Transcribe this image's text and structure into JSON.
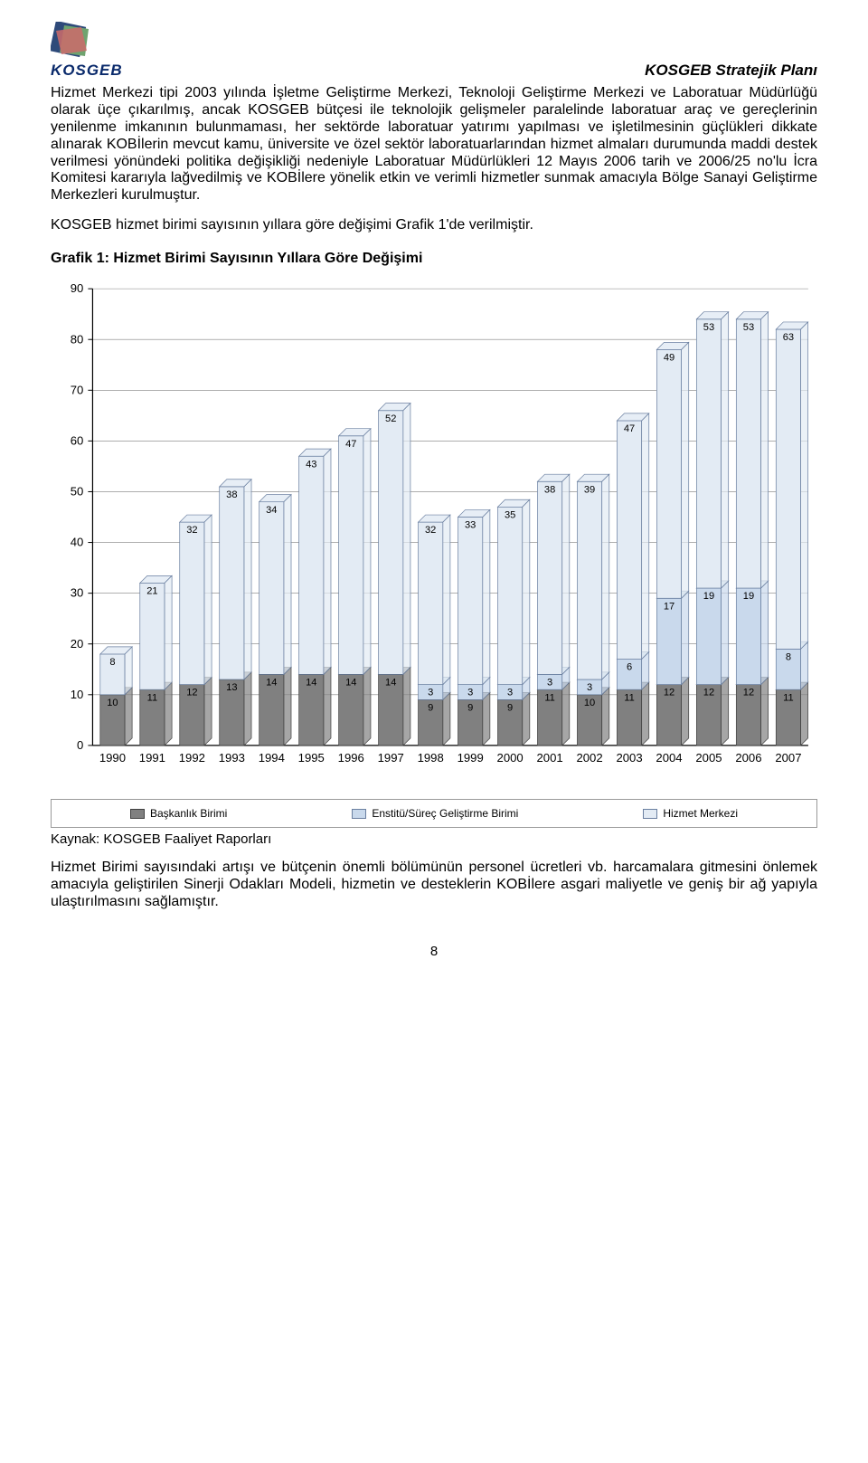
{
  "header": {
    "logo_text": "KOSGEB",
    "title": "KOSGEB Stratejik Planı"
  },
  "paragraphs": {
    "p1": "Hizmet Merkezi tipi 2003 yılında İşletme Geliştirme Merkezi, Teknoloji Geliştirme Merkezi ve Laboratuar Müdürlüğü olarak üçe çıkarılmış, ancak KOSGEB bütçesi ile teknolojik gelişmeler paralelinde laboratuar araç ve gereçlerinin yenilenme imkanının bulunmaması, her sektörde laboratuar yatırımı yapılması ve işletilmesinin güçlükleri dikkate alınarak KOBİlerin mevcut kamu, üniversite ve özel sektör laboratuarlarından hizmet almaları durumunda maddi destek verilmesi yönündeki politika değişikliği nedeniyle Laboratuar Müdürlükleri 12 Mayıs 2006 tarih ve 2006/25 no'lu İcra Komitesi kararıyla lağvedilmiş ve KOBİlere yönelik etkin ve verimli hizmetler sunmak amacıyla Bölge Sanayi Geliştirme Merkezleri kurulmuştur.",
    "p2": "KOSGEB hizmet birimi sayısının yıllara göre değişimi Grafik 1'de verilmiştir.",
    "p3": "Hizmet Birimi sayısındaki artışı ve bütçenin önemli bölümünün personel ücretleri vb. harcamalara gitmesini önlemek amacıyla geliştirilen Sinerji Odakları Modeli, hizmetin ve desteklerin KOBİlere asgari maliyetle ve geniş bir ağ yapıyla ulaştırılmasını sağlamıştır."
  },
  "chart_heading": "Grafik 1: Hizmet Birimi Sayısının Yıllara Göre Değişimi",
  "kaynak": "Kaynak: KOSGEB  Faaliyet Raporları",
  "page_number": "8",
  "chart": {
    "type": "stacked-bar-with-marker",
    "background_color": "#ffffff",
    "axis_color": "#000000",
    "grid_color": "#7f7f7f",
    "tick_fontsize": 13,
    "data_label_fontsize": 11,
    "data_label_color": "#000000",
    "ylim": [
      0,
      90
    ],
    "ytick_step": 10,
    "yticks": [
      0,
      10,
      20,
      30,
      40,
      50,
      60,
      70,
      80,
      90
    ],
    "years": [
      1990,
      1991,
      1992,
      1993,
      1994,
      1995,
      1996,
      1997,
      1998,
      1999,
      2000,
      2001,
      2002,
      2003,
      2004,
      2005,
      2006,
      2007
    ],
    "series": {
      "baskanlik": {
        "label": "Başkanlık Birimi",
        "color": "#808080",
        "border": "#404040",
        "values": [
          10,
          11,
          12,
          13,
          14,
          14,
          14,
          14,
          9,
          9,
          9,
          11,
          10,
          11,
          12,
          12,
          12,
          11
        ]
      },
      "enstitu": {
        "label": "Enstitü/Süreç Geliştirme Birimi",
        "color": "#c9d9ec",
        "border": "#6a7fa0",
        "values": [
          0,
          0,
          0,
          0,
          0,
          0,
          0,
          0,
          3,
          3,
          3,
          3,
          3,
          6,
          17,
          19,
          19,
          8
        ]
      },
      "hizmet": {
        "label": "Hizmet Merkezi",
        "color": "#e3ebf4",
        "border": "#6a7fa0",
        "values": [
          8,
          21,
          32,
          38,
          34,
          43,
          47,
          52,
          32,
          33,
          35,
          38,
          39,
          47,
          49,
          53,
          53,
          63
        ]
      }
    }
  },
  "legend": {
    "items": [
      "baskanlik",
      "enstitu",
      "hizmet"
    ]
  }
}
